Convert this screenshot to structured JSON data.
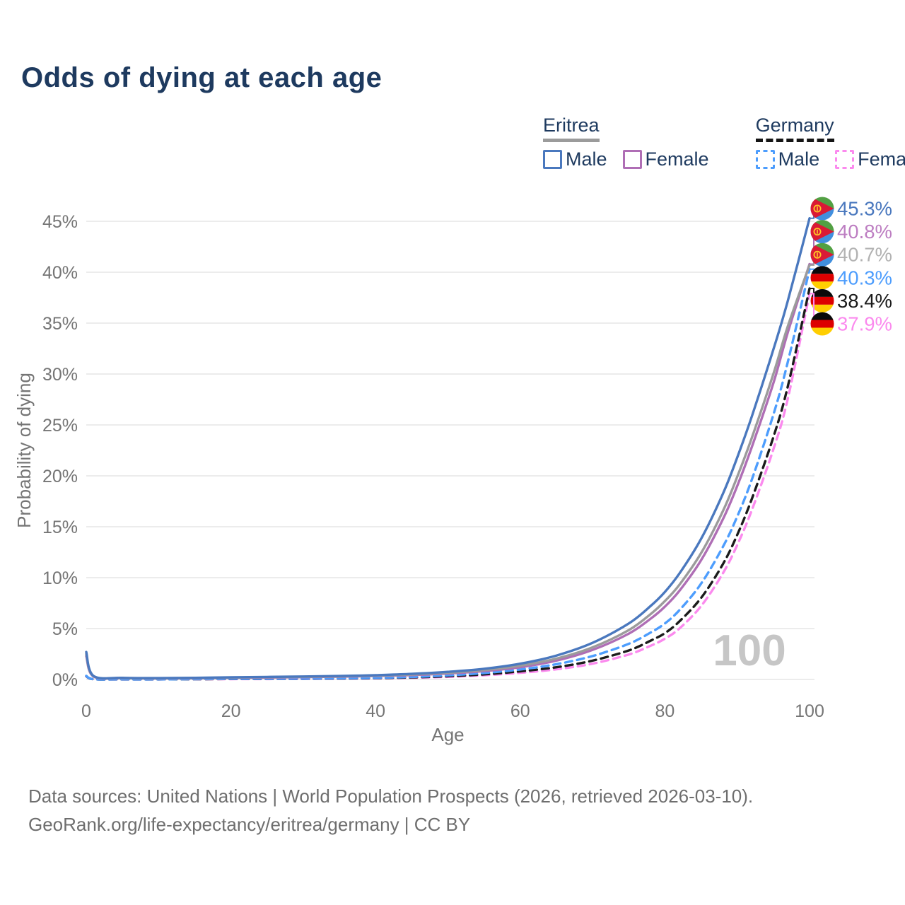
{
  "page": {
    "title": "Odds of dying at each age",
    "watermark": "100",
    "footer_line1": "Data sources: United Nations | World Population Prospects (2026, retrieved 2026-03-10).",
    "footer_line2": "GeoRank.org/life-expectancy/eritrea/germany | CC BY"
  },
  "legend": {
    "groups": [
      {
        "label": "Eritrea",
        "underline_style": "solid",
        "underline_color": "#9b9b9b",
        "items": [
          {
            "label": "Male",
            "series": "eritrea-male"
          },
          {
            "label": "Female",
            "series": "eritrea-female"
          }
        ]
      },
      {
        "label": "Germany",
        "underline_style": "dashed",
        "underline_color": "#141414",
        "items": [
          {
            "label": "Male",
            "series": "germany-male"
          },
          {
            "label": "Female",
            "series": "germany-female"
          }
        ]
      }
    ]
  },
  "chart_data": {
    "type": "line",
    "title": "Odds of dying at each age",
    "xlabel": "Age",
    "ylabel": "Probability of dying",
    "xlim": [
      0,
      100
    ],
    "ylim_percent": [
      0,
      47
    ],
    "x_ticks": [
      0,
      20,
      40,
      60,
      80,
      100
    ],
    "y_ticks_percent": [
      0,
      5,
      10,
      15,
      20,
      25,
      30,
      35,
      40,
      45
    ],
    "y_tick_suffix": "%",
    "grid": true,
    "legend_position": "top-right",
    "colors": {
      "grid": "#ececec",
      "axis_text": "#757575",
      "watermark": "#c6c6c6",
      "title_text": "#1e3a5f",
      "footer_text": "#6e6e6e"
    },
    "series": [
      {
        "id": "germany-female",
        "name": "Germany Female",
        "country": "germany",
        "sex": "Female",
        "color": "#fb8aee",
        "label_color": "#fb8aee",
        "dash": "dashed",
        "end_label": "37.9%",
        "points": [
          [
            0,
            0.3
          ],
          [
            1,
            0.025
          ],
          [
            5,
            0.009
          ],
          [
            10,
            0.009
          ],
          [
            15,
            0.022
          ],
          [
            20,
            0.035
          ],
          [
            25,
            0.045
          ],
          [
            30,
            0.055
          ],
          [
            35,
            0.075
          ],
          [
            40,
            0.11
          ],
          [
            45,
            0.17
          ],
          [
            50,
            0.26
          ],
          [
            55,
            0.42
          ],
          [
            60,
            0.65
          ],
          [
            65,
            1.0
          ],
          [
            70,
            1.55
          ],
          [
            75,
            2.45
          ],
          [
            78,
            3.3
          ],
          [
            80,
            4.0
          ],
          [
            82,
            5.0
          ],
          [
            85,
            7.2
          ],
          [
            88,
            10.4
          ],
          [
            90,
            13.2
          ],
          [
            92,
            16.6
          ],
          [
            95,
            22.6
          ],
          [
            97,
            27.6
          ],
          [
            100,
            37.9
          ]
        ]
      },
      {
        "id": "germany-both",
        "name": "Germany Both sexes",
        "country": "germany",
        "sex": "Both",
        "color": "#1b1b1b",
        "label_color": "#1b1b1b",
        "dash": "dashed",
        "end_label": "38.4%",
        "points": [
          [
            0,
            0.33
          ],
          [
            1,
            0.028
          ],
          [
            5,
            0.01
          ],
          [
            10,
            0.01
          ],
          [
            15,
            0.03
          ],
          [
            20,
            0.05
          ],
          [
            25,
            0.06
          ],
          [
            30,
            0.07
          ],
          [
            35,
            0.09
          ],
          [
            40,
            0.13
          ],
          [
            45,
            0.2
          ],
          [
            50,
            0.32
          ],
          [
            55,
            0.5
          ],
          [
            60,
            0.8
          ],
          [
            65,
            1.2
          ],
          [
            70,
            1.85
          ],
          [
            75,
            2.85
          ],
          [
            78,
            3.8
          ],
          [
            80,
            4.55
          ],
          [
            82,
            5.7
          ],
          [
            85,
            8.0
          ],
          [
            88,
            11.3
          ],
          [
            90,
            14.2
          ],
          [
            92,
            17.7
          ],
          [
            95,
            23.8
          ],
          [
            97,
            28.8
          ],
          [
            100,
            38.4
          ]
        ]
      },
      {
        "id": "germany-male",
        "name": "Germany Male",
        "country": "germany",
        "sex": "Male",
        "color": "#4d9dfd",
        "label_color": "#4d9dfd",
        "dash": "dashed",
        "end_label": "40.3%",
        "points": [
          [
            0,
            0.35
          ],
          [
            1,
            0.03
          ],
          [
            5,
            0.012
          ],
          [
            10,
            0.012
          ],
          [
            15,
            0.035
          ],
          [
            20,
            0.065
          ],
          [
            25,
            0.075
          ],
          [
            30,
            0.085
          ],
          [
            35,
            0.11
          ],
          [
            40,
            0.16
          ],
          [
            45,
            0.25
          ],
          [
            50,
            0.4
          ],
          [
            55,
            0.63
          ],
          [
            60,
            0.98
          ],
          [
            65,
            1.5
          ],
          [
            70,
            2.3
          ],
          [
            75,
            3.5
          ],
          [
            78,
            4.6
          ],
          [
            80,
            5.5
          ],
          [
            82,
            6.8
          ],
          [
            85,
            9.4
          ],
          [
            88,
            13.0
          ],
          [
            90,
            16.0
          ],
          [
            92,
            19.6
          ],
          [
            95,
            26.0
          ],
          [
            97,
            31.2
          ],
          [
            100,
            40.3
          ]
        ]
      },
      {
        "id": "eritrea-female",
        "name": "Eritrea Female",
        "country": "eritrea",
        "sex": "Female",
        "color": "#af6eb5",
        "label_color": "#bd7ec2",
        "dash": "solid",
        "end_label": "40.8%",
        "points": [
          [
            0,
            2.3
          ],
          [
            1,
            0.29
          ],
          [
            5,
            0.13
          ],
          [
            10,
            0.1
          ],
          [
            15,
            0.12
          ],
          [
            20,
            0.16
          ],
          [
            25,
            0.19
          ],
          [
            30,
            0.23
          ],
          [
            35,
            0.27
          ],
          [
            40,
            0.34
          ],
          [
            45,
            0.43
          ],
          [
            50,
            0.58
          ],
          [
            55,
            0.82
          ],
          [
            60,
            1.2
          ],
          [
            65,
            1.85
          ],
          [
            70,
            2.9
          ],
          [
            75,
            4.5
          ],
          [
            78,
            5.95
          ],
          [
            80,
            7.15
          ],
          [
            82,
            8.7
          ],
          [
            85,
            11.7
          ],
          [
            88,
            15.7
          ],
          [
            90,
            19.0
          ],
          [
            92,
            22.8
          ],
          [
            95,
            29.1
          ],
          [
            97,
            34.1
          ],
          [
            100,
            40.8
          ]
        ]
      },
      {
        "id": "eritrea-both",
        "name": "Eritrea Both sexes",
        "country": "eritrea",
        "sex": "Both",
        "color": "#9b9b9b",
        "label_color": "#b2b2b2",
        "dash": "solid",
        "end_label": "40.7%",
        "points": [
          [
            0,
            2.5
          ],
          [
            1,
            0.32
          ],
          [
            5,
            0.14
          ],
          [
            10,
            0.11
          ],
          [
            15,
            0.14
          ],
          [
            20,
            0.18
          ],
          [
            25,
            0.22
          ],
          [
            30,
            0.26
          ],
          [
            35,
            0.3
          ],
          [
            40,
            0.37
          ],
          [
            45,
            0.48
          ],
          [
            50,
            0.65
          ],
          [
            55,
            0.92
          ],
          [
            60,
            1.35
          ],
          [
            65,
            2.05
          ],
          [
            70,
            3.15
          ],
          [
            75,
            4.85
          ],
          [
            78,
            6.4
          ],
          [
            80,
            7.7
          ],
          [
            82,
            9.3
          ],
          [
            85,
            12.4
          ],
          [
            88,
            16.5
          ],
          [
            90,
            19.9
          ],
          [
            92,
            23.7
          ],
          [
            95,
            30.0
          ],
          [
            97,
            34.7
          ],
          [
            100,
            40.7
          ]
        ]
      },
      {
        "id": "eritrea-male",
        "name": "Eritrea Male",
        "country": "eritrea",
        "sex": "Male",
        "color": "#4a78be",
        "label_color": "#4a78be",
        "dash": "solid",
        "end_label": "45.3%",
        "points": [
          [
            0,
            2.7
          ],
          [
            1,
            0.35
          ],
          [
            5,
            0.16
          ],
          [
            10,
            0.13
          ],
          [
            15,
            0.16
          ],
          [
            20,
            0.21
          ],
          [
            25,
            0.25
          ],
          [
            30,
            0.29
          ],
          [
            35,
            0.34
          ],
          [
            40,
            0.42
          ],
          [
            45,
            0.55
          ],
          [
            50,
            0.75
          ],
          [
            55,
            1.05
          ],
          [
            60,
            1.55
          ],
          [
            65,
            2.35
          ],
          [
            70,
            3.6
          ],
          [
            75,
            5.5
          ],
          [
            78,
            7.2
          ],
          [
            80,
            8.6
          ],
          [
            82,
            10.4
          ],
          [
            85,
            13.8
          ],
          [
            88,
            18.2
          ],
          [
            90,
            21.8
          ],
          [
            92,
            25.8
          ],
          [
            95,
            32.4
          ],
          [
            97,
            37.2
          ],
          [
            100,
            45.3
          ]
        ]
      }
    ],
    "flag_colors": {
      "eritrea_green": "#52a043",
      "eritrea_blue": "#418fde",
      "eritrea_red": "#da1a35",
      "eritrea_gold": "#ffc726",
      "germany_black": "#0a0a0a",
      "germany_red": "#dd0000",
      "germany_gold": "#ffce00"
    }
  }
}
